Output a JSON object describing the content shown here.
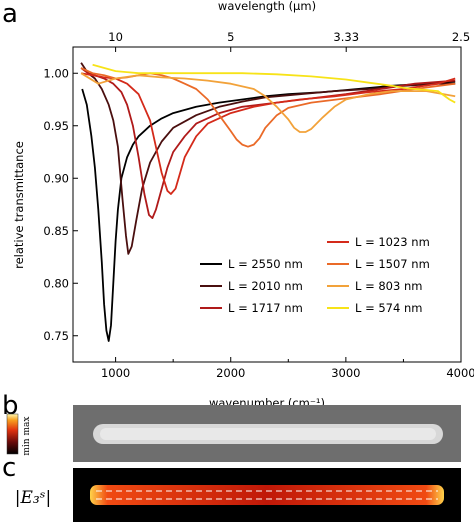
{
  "panels": {
    "a": "a",
    "b": "b",
    "c": "c"
  },
  "colorbar": {
    "max_label": "max",
    "min_label": "min",
    "field_label": "|E₃ˢ|"
  },
  "chart_data": {
    "type": "line",
    "title": "",
    "xlabel": "wavenumber (cm⁻¹)",
    "ylabel": "relative transmittance",
    "top_xlabel": "wavelength (μm)",
    "xlim": [
      630,
      4000
    ],
    "ylim": [
      0.725,
      1.025
    ],
    "x_ticks": [
      "1000",
      "2000",
      "3000",
      "4000"
    ],
    "y_ticks": [
      "0.75",
      "0.80",
      "0.85",
      "0.90",
      "0.95",
      "1.00"
    ],
    "top_ticks": [
      "10",
      "5",
      "3.33",
      "2.5"
    ],
    "legend": {
      "left_column": [
        "L = 2550 nm",
        "L = 2010 nm",
        "L = 1717 nm"
      ],
      "right_column": [
        "L = 1023 nm",
        "L = 1507 nm",
        "L = 803 nm",
        "L = 574 nm"
      ]
    },
    "series": [
      {
        "name": "L = 2550 nm",
        "color": "#000000",
        "x": [
          710,
          750,
          790,
          820,
          850,
          880,
          900,
          920,
          940,
          960,
          980,
          1000,
          1020,
          1050,
          1100,
          1150,
          1200,
          1300,
          1400,
          1500,
          1700,
          1900,
          2100,
          2300,
          2500,
          2800,
          3100,
          3400,
          3700,
          3950
        ],
        "y": [
          0.985,
          0.97,
          0.94,
          0.91,
          0.87,
          0.82,
          0.78,
          0.755,
          0.745,
          0.76,
          0.8,
          0.84,
          0.87,
          0.9,
          0.92,
          0.932,
          0.94,
          0.95,
          0.957,
          0.962,
          0.968,
          0.972,
          0.975,
          0.978,
          0.98,
          0.982,
          0.985,
          0.988,
          0.99,
          0.992
        ]
      },
      {
        "name": "L = 2010 nm",
        "color": "#4a0f0f",
        "x": [
          700,
          760,
          820,
          880,
          940,
          980,
          1020,
          1060,
          1090,
          1110,
          1140,
          1180,
          1230,
          1300,
          1400,
          1500,
          1700,
          1900,
          2100,
          2300,
          2600,
          2900,
          3200,
          3500,
          3800,
          3950
        ],
        "y": [
          1.01,
          1.0,
          0.995,
          0.985,
          0.97,
          0.955,
          0.93,
          0.88,
          0.845,
          0.828,
          0.835,
          0.86,
          0.89,
          0.915,
          0.935,
          0.948,
          0.96,
          0.968,
          0.973,
          0.977,
          0.98,
          0.983,
          0.985,
          0.988,
          0.99,
          0.99
        ]
      },
      {
        "name": "L = 1717 nm",
        "color": "#b01a1a",
        "x": [
          700,
          760,
          820,
          900,
          980,
          1050,
          1100,
          1150,
          1200,
          1250,
          1290,
          1320,
          1350,
          1400,
          1450,
          1500,
          1600,
          1700,
          1900,
          2100,
          2400,
          2700,
          3000,
          3300,
          3600,
          3950
        ],
        "y": [
          1.005,
          1.0,
          0.998,
          0.995,
          0.99,
          0.982,
          0.97,
          0.95,
          0.92,
          0.885,
          0.865,
          0.862,
          0.87,
          0.89,
          0.91,
          0.925,
          0.94,
          0.952,
          0.962,
          0.968,
          0.972,
          0.976,
          0.98,
          0.985,
          0.99,
          0.993
        ]
      },
      {
        "name": "L = 1023 nm",
        "color": "#d42a1a",
        "x": [
          700,
          800,
          900,
          1000,
          1100,
          1200,
          1300,
          1350,
          1400,
          1450,
          1480,
          1520,
          1560,
          1600,
          1700,
          1800,
          2000,
          2200,
          2400,
          2600,
          2900,
          3200,
          3500,
          3800,
          3950
        ],
        "y": [
          1.0,
          0.998,
          0.996,
          0.995,
          0.99,
          0.98,
          0.955,
          0.93,
          0.905,
          0.888,
          0.885,
          0.89,
          0.905,
          0.92,
          0.94,
          0.952,
          0.962,
          0.968,
          0.972,
          0.975,
          0.978,
          0.982,
          0.985,
          0.99,
          0.995
        ]
      },
      {
        "name": "L = 1507 nm",
        "color": "#ea6a28",
        "x": [
          700,
          800,
          900,
          1000,
          1100,
          1200,
          1300,
          1400,
          1500,
          1600,
          1700,
          1800,
          1900,
          2000,
          2050,
          2100,
          2150,
          2200,
          2250,
          2300,
          2400,
          2500,
          2700,
          3000,
          3300,
          3600,
          3950
        ],
        "y": [
          1.005,
          1.0,
          0.998,
          0.995,
          0.996,
          0.998,
          1.0,
          0.998,
          0.995,
          0.99,
          0.985,
          0.975,
          0.96,
          0.945,
          0.937,
          0.932,
          0.93,
          0.932,
          0.938,
          0.948,
          0.96,
          0.967,
          0.972,
          0.976,
          0.98,
          0.985,
          0.99
        ]
      },
      {
        "name": "L = 803 nm",
        "color": "#f2a23a",
        "x": [
          700,
          850,
          1000,
          1200,
          1400,
          1600,
          1800,
          2000,
          2200,
          2300,
          2400,
          2500,
          2550,
          2600,
          2650,
          2700,
          2800,
          2900,
          3000,
          3200,
          3400,
          3700,
          3950
        ],
        "y": [
          1.0,
          0.99,
          0.995,
          0.998,
          0.996,
          0.995,
          0.993,
          0.99,
          0.985,
          0.978,
          0.968,
          0.956,
          0.948,
          0.944,
          0.944,
          0.947,
          0.958,
          0.968,
          0.975,
          0.98,
          0.983,
          0.983,
          0.978
        ]
      },
      {
        "name": "L = 574 nm",
        "color": "#f7e318",
        "x": [
          800,
          1000,
          1200,
          1500,
          1800,
          2100,
          2400,
          2700,
          3000,
          3200,
          3400,
          3500,
          3600,
          3700,
          3800,
          3900,
          3950
        ],
        "y": [
          1.008,
          1.002,
          1.0,
          1.0,
          1.0,
          1.0,
          0.999,
          0.997,
          0.994,
          0.991,
          0.988,
          0.986,
          0.985,
          0.984,
          0.983,
          0.975,
          0.972
        ]
      }
    ]
  }
}
